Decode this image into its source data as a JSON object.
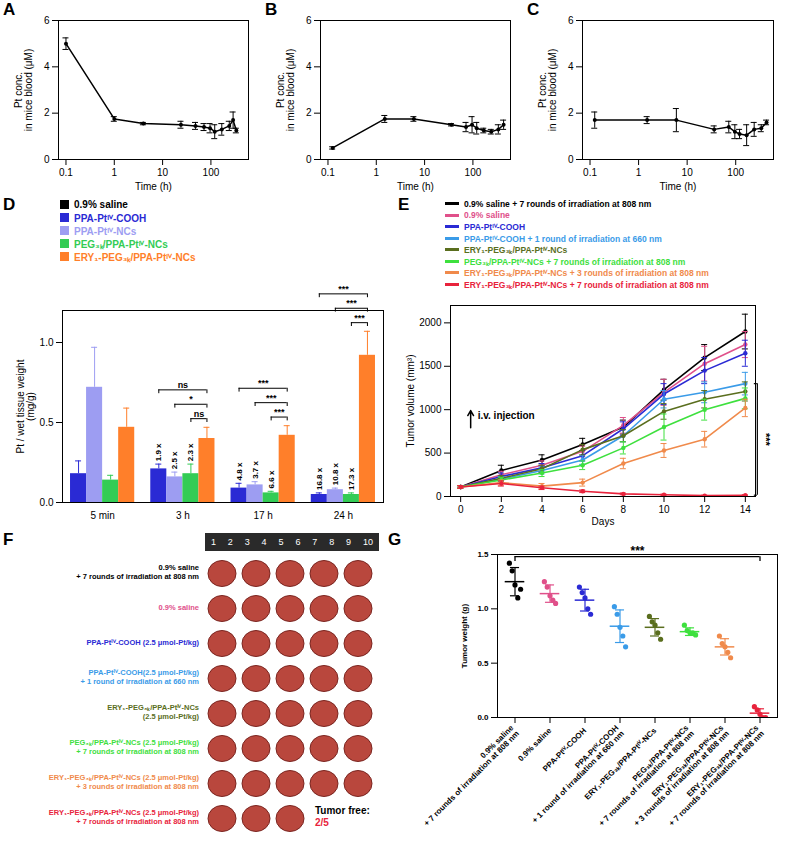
{
  "chart_data": [
    {
      "type": "line",
      "title": "A",
      "xlabel": "Time (h)",
      "ylabel": "Pt conc.\nin mice blood (μM)",
      "log": "x",
      "x": [
        0.1,
        1,
        4,
        24,
        48,
        72,
        96,
        120,
        168,
        240,
        288,
        336
      ],
      "values": [
        5.0,
        1.75,
        1.55,
        1.5,
        1.45,
        1.4,
        1.35,
        1.2,
        1.3,
        1.45,
        1.7,
        1.25
      ],
      "errors": [
        0.25,
        0.1,
        0.05,
        0.15,
        0.15,
        0.15,
        0.2,
        0.3,
        0.25,
        0.2,
        0.35,
        0.1
      ],
      "color": "#000000",
      "marker": "circle",
      "xlim": [
        0.07,
        600
      ],
      "xticks": [
        0.1,
        1,
        10,
        100
      ],
      "ylim": [
        0,
        6
      ],
      "yticks": [
        0,
        2,
        4,
        6
      ]
    },
    {
      "type": "line",
      "title": "B",
      "xlabel": "Time (h)",
      "ylabel": "Pt conc.\nin mice blood (μM)",
      "log": "x",
      "x": [
        0.125,
        1.5,
        6,
        36,
        72,
        96,
        120,
        168,
        240,
        336,
        432
      ],
      "values": [
        0.5,
        1.75,
        1.75,
        1.5,
        1.4,
        1.5,
        1.35,
        1.25,
        1.2,
        1.3,
        1.5
      ],
      "errors": [
        0.05,
        0.15,
        0.1,
        0.05,
        0.2,
        0.35,
        0.25,
        0.1,
        0.1,
        0.2,
        0.2
      ],
      "color": "#000000",
      "marker": "circle",
      "xlim": [
        0.07,
        600
      ],
      "xticks": [
        0.1,
        1,
        10,
        100
      ],
      "ylim": [
        0,
        6
      ],
      "yticks": [
        0,
        2,
        4,
        6
      ]
    },
    {
      "type": "line",
      "title": "C",
      "xlabel": "Time (h)",
      "ylabel": "Pt conc.\nin mice blood (μM)",
      "log": "x",
      "x": [
        0.125,
        1.5,
        6,
        36,
        72,
        96,
        120,
        168,
        240,
        336,
        432
      ],
      "values": [
        1.7,
        1.7,
        1.7,
        1.3,
        1.4,
        1.2,
        1.1,
        1.05,
        1.3,
        1.35,
        1.6
      ],
      "errors": [
        0.35,
        0.15,
        0.5,
        0.15,
        0.25,
        0.3,
        0.2,
        0.45,
        0.3,
        0.15,
        0.1
      ],
      "color": "#000000",
      "marker": "circle",
      "xlim": [
        0.07,
        600
      ],
      "xticks": [
        0.1,
        1,
        10,
        100
      ],
      "ylim": [
        0,
        6
      ],
      "yticks": [
        0,
        2,
        4,
        6
      ]
    },
    {
      "type": "bar",
      "title": "D",
      "ylabel": "Pt / wet tissue weight\n(mg/g)",
      "legend": "top-left",
      "categories": [
        "5 min",
        "3 h",
        "17 h",
        "24 h"
      ],
      "series": [
        {
          "name": "0.9% saline",
          "color": "#000000",
          "values": [
            null,
            null,
            null,
            null
          ],
          "errors": [
            null,
            null,
            null,
            null
          ]
        },
        {
          "name": "PPA-Ptᴵⱽ-COOH",
          "color": "#2a2ad4",
          "values": [
            0.18,
            0.21,
            0.09,
            0.05
          ],
          "errors": [
            0.08,
            0.03,
            0.03,
            0.01
          ]
        },
        {
          "name": "PPA-Ptᴵⱽ-NCs",
          "color": "#9d9df2",
          "values": [
            0.72,
            0.16,
            0.11,
            0.08
          ],
          "errors": [
            0.25,
            0.03,
            0.02,
            0.01
          ]
        },
        {
          "name": "PEG₃ₖ/PPA-Ptᴵⱽ-NCs",
          "color": "#33cc55",
          "values": [
            0.14,
            0.18,
            0.06,
            0.05
          ],
          "errors": [
            0.03,
            0.06,
            0.01,
            0.01
          ]
        },
        {
          "name": "ERY₁-PEG₃ₖ/PPA-Ptᴵⱽ-NCs",
          "color": "#ff7f2a",
          "values": [
            0.47,
            0.4,
            0.42,
            0.92
          ],
          "errors": [
            0.12,
            0.07,
            0.06,
            0.15
          ]
        }
      ],
      "ylim": [
        0,
        1.2
      ],
      "yticks": [
        {
          "value": 0,
          "label": "0.0"
        },
        {
          "value": 0.5,
          "label": "0.5"
        },
        {
          "value": 1,
          "label": "1.0"
        }
      ],
      "annotations": [
        {
          "category": "3 h",
          "labels": [
            "ns",
            "*",
            "ns"
          ],
          "ratios": [
            "1.9 x",
            "2.5 x",
            "2.3 x"
          ]
        },
        {
          "category": "17 h",
          "labels": [
            "***",
            "***",
            "***"
          ],
          "ratios": [
            "4.8 x",
            "3.7 x",
            "6.6 x"
          ]
        },
        {
          "category": "24 h",
          "labels": [
            "***",
            "***",
            "***"
          ],
          "ratios": [
            "16.8 x",
            "10.8 x",
            "17.3 x"
          ]
        }
      ]
    },
    {
      "type": "line",
      "title": "E",
      "xlabel": "Days",
      "ylabel": "Tumor volume (mm³)",
      "legend": "top-left",
      "marker": "circle",
      "x": [
        0,
        2,
        4,
        6,
        8,
        10,
        12,
        14
      ],
      "series": [
        {
          "name": "0.9% saline + 7 rounds of irradiation at 808 nm",
          "color": "#000000",
          "values": [
            110,
            300,
            420,
            600,
            800,
            1230,
            1600,
            1900
          ],
          "errors": [
            15,
            60,
            60,
            70,
            80,
            120,
            150,
            200
          ]
        },
        {
          "name": "0.9% saline",
          "color": "#e0508a",
          "values": [
            110,
            250,
            360,
            520,
            820,
            1200,
            1530,
            1750
          ],
          "errors": [
            15,
            40,
            50,
            60,
            90,
            150,
            200,
            150
          ]
        },
        {
          "name": "PPA-Ptᴵⱽ-COOH",
          "color": "#2a2ad4",
          "values": [
            110,
            230,
            330,
            470,
            780,
            1180,
            1450,
            1650
          ],
          "errors": [
            15,
            40,
            50,
            60,
            80,
            120,
            150,
            150
          ]
        },
        {
          "name": "PPA-Ptᴵⱽ-COOH + 1 round of irradiation at 660 nm",
          "color": "#3a9be8",
          "values": [
            110,
            200,
            300,
            420,
            700,
            1120,
            1200,
            1300
          ],
          "errors": [
            15,
            30,
            40,
            50,
            70,
            100,
            120,
            130
          ]
        },
        {
          "name": "ERY₁-PEG₃ₖ/PPA-Ptᴵⱽ-NCs",
          "color": "#5a6e1e",
          "values": [
            110,
            210,
            320,
            540,
            700,
            980,
            1120,
            1210
          ],
          "errors": [
            15,
            30,
            40,
            60,
            70,
            90,
            100,
            110
          ]
        },
        {
          "name": "PEG₃ₖ/PPA-Ptᴵⱽ-NCs + 7 rounds of irradiation at 808 nm",
          "color": "#3ee03e",
          "values": [
            110,
            190,
            270,
            360,
            560,
            800,
            1000,
            1130
          ],
          "errors": [
            15,
            30,
            40,
            50,
            70,
            150,
            120,
            120
          ]
        },
        {
          "name": "ERY₁-PEG₃ₖ/PPA-Ptᴵⱽ-NCs + 3 rounds of irradiation at 808 nm",
          "color": "#f08a4b",
          "values": [
            110,
            160,
            120,
            160,
            380,
            530,
            660,
            1020
          ],
          "errors": [
            15,
            30,
            30,
            40,
            60,
            80,
            90,
            100
          ]
        },
        {
          "name": "ERY₁-PEG₃ₖ/PPA-Ptᴵⱽ-NCs + 7 rounds of irradiation at 808 nm",
          "color": "#e8233c",
          "values": [
            110,
            150,
            100,
            60,
            30,
            20,
            10,
            15
          ],
          "errors": [
            15,
            30,
            20,
            15,
            10,
            8,
            5,
            5
          ]
        }
      ],
      "xlim": [
        -0.5,
        14.5
      ],
      "xticks": [
        0,
        2,
        4,
        6,
        8,
        10,
        12,
        14
      ],
      "ylim": [
        0,
        2200
      ],
      "yticks": [
        0,
        500,
        1000,
        1500,
        2000
      ],
      "annotations": [
        {
          "text": "i.v. injection",
          "x": 0
        }
      ],
      "significance": {
        "text": "***",
        "from": "ERY₁-PEG₃ₖ/PPA-Ptᴵⱽ-NCs + 7 rounds of irradiation at 808 nm",
        "to": "PPA-Ptᴵⱽ-COOH + 1 round of irradiation at 660 nm"
      }
    },
    {
      "type": "photo",
      "title": "F",
      "ruler": [
        1,
        2,
        3,
        4,
        5,
        6,
        7,
        8,
        9,
        10
      ],
      "rows": [
        {
          "label": "0.9% saline\n+ 7 rounds of irradiation at 808 nm",
          "color": "#000000",
          "count": 5
        },
        {
          "label": "0.9% saline",
          "color": "#e0508a",
          "count": 5
        },
        {
          "label": "PPA-Ptᴵⱽ-COOH (2.5 μmol-Pt/kg)",
          "color": "#2a2ad4",
          "count": 5
        },
        {
          "label": "PPA-Ptᴵⱽ-COOH(2.5 μmol-Pt/kg)\n+ 1 round of irradiation at 660 nm",
          "color": "#3a9be8",
          "count": 5
        },
        {
          "label": "ERY₁-PEG₃ₖ/PPA-Ptᴵⱽ-NCs\n(2.5 μmol-Pt/kg)",
          "color": "#5a6e1e",
          "count": 5
        },
        {
          "label": "PEG₃ₖ/PPA-Ptᴵⱽ-NCs (2.5 μmol-Pt/kg)\n+ 7 rounds of irradiation at 808 nm",
          "color": "#3ee03e",
          "count": 5
        },
        {
          "label": "ERY₁-PEG₃ₖ/PPA-Ptᴵⱽ-NCs (2.5 μmol-Pt/kg)\n+ 3 rounds of irradiation at 808 nm",
          "color": "#f08a4b",
          "count": 5
        },
        {
          "label": "ERY₁-PEG₃ₖ/PPA-Ptᴵⱽ-NCs (2.5 μmol-Pt/kg)\n+ 7 rounds of irradiation at 808 nm",
          "color": "#e8233c",
          "count": 3
        }
      ],
      "annotation": [
        "Tumor free:",
        "2/5"
      ]
    },
    {
      "type": "scatter",
      "title": "G",
      "ylabel": "Tumor weight (g)",
      "marker": "circle",
      "categories": [
        "0.9% saline\n+ 7 rounds of irradiation at 808 nm",
        "0.9% saline",
        "PPA-Ptᴵⱽ-COOH",
        "PPA-Ptᴵⱽ-COOH\n+ 1 round of irradiation at 660 nm",
        "ERY₁-PEG₃ₖ/PPA-Ptᴵⱽ-NCs",
        "PEG₃ₖ/PPA-Ptᴵⱽ-NCs\n+ 7 rounds of irradiation at 808 nm",
        "ERY₁-PEG₃ₖ/PPA-Ptᴵⱽ-NCs\n+ 3 rounds of irradiation at 808 nm",
        "ERY₁-PEG₃ₖ/PPA-Ptᴵⱽ-NCs\n+ 7 rounds of irradiation at 808 nm"
      ],
      "colors": [
        "#000000",
        "#e0508a",
        "#2a2ad4",
        "#3a9be8",
        "#5a6e1e",
        "#3ee03e",
        "#f08a4b",
        "#e8233c"
      ],
      "values": [
        [
          1.42,
          1.35,
          1.22,
          1.1,
          1.18
        ],
        [
          1.25,
          1.2,
          1.12,
          1.08,
          1.05
        ],
        [
          1.2,
          1.15,
          1.1,
          1.0,
          0.95
        ],
        [
          1.02,
          0.95,
          0.83,
          0.75,
          0.65
        ],
        [
          0.93,
          0.88,
          0.85,
          0.78,
          0.72
        ],
        [
          0.85,
          0.8,
          0.78,
          0.78,
          0.76
        ],
        [
          0.75,
          0.68,
          0.65,
          0.6,
          0.55
        ],
        [
          0.1,
          0.07,
          0.03,
          0.0,
          0.0
        ]
      ],
      "means": [
        1.25,
        1.14,
        1.08,
        0.84,
        0.83,
        0.79,
        0.65,
        0.04
      ],
      "errors": [
        0.13,
        0.08,
        0.1,
        0.15,
        0.08,
        0.035,
        0.075,
        0.04
      ],
      "ylim": [
        0,
        1.5
      ],
      "yticks": [
        {
          "value": 0,
          "label": "0.0"
        },
        0.5,
        {
          "value": 1,
          "label": "1.0"
        },
        1.5
      ],
      "significance": {
        "text": "***"
      }
    }
  ]
}
